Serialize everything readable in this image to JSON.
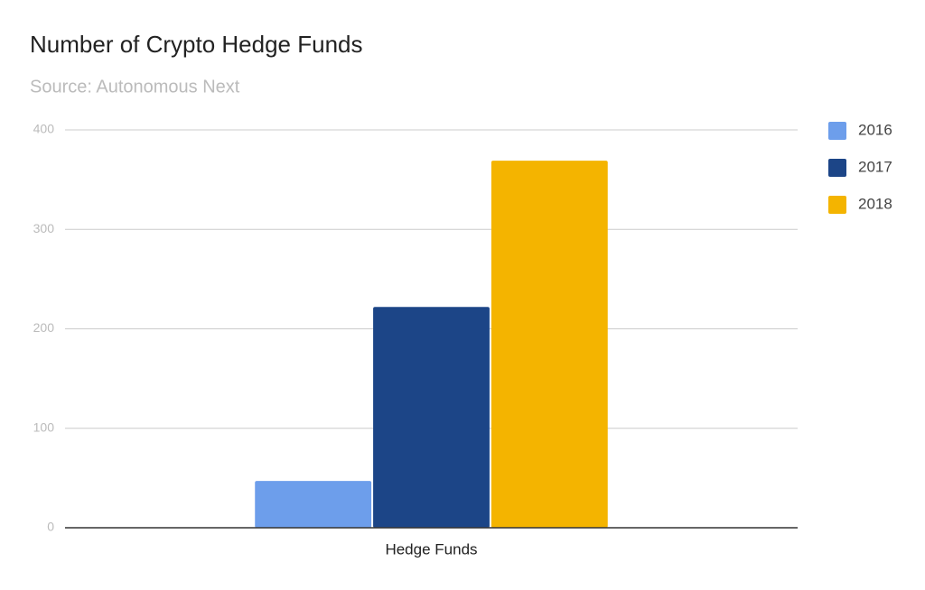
{
  "chart_data": {
    "type": "bar",
    "title": "Number of Crypto Hedge Funds",
    "subtitle": "Source: Autonomous Next",
    "categories": [
      "Hedge Funds"
    ],
    "series": [
      {
        "name": "2016",
        "color": "#6d9eeb",
        "values": [
          47
        ]
      },
      {
        "name": "2017",
        "color": "#1c4587",
        "values": [
          222
        ]
      },
      {
        "name": "2018",
        "color": "#f4b400",
        "values": [
          369
        ]
      }
    ],
    "ylim": [
      0,
      400
    ],
    "yticks": [
      0,
      100,
      200,
      300,
      400
    ],
    "grid": true,
    "legend": "right"
  }
}
